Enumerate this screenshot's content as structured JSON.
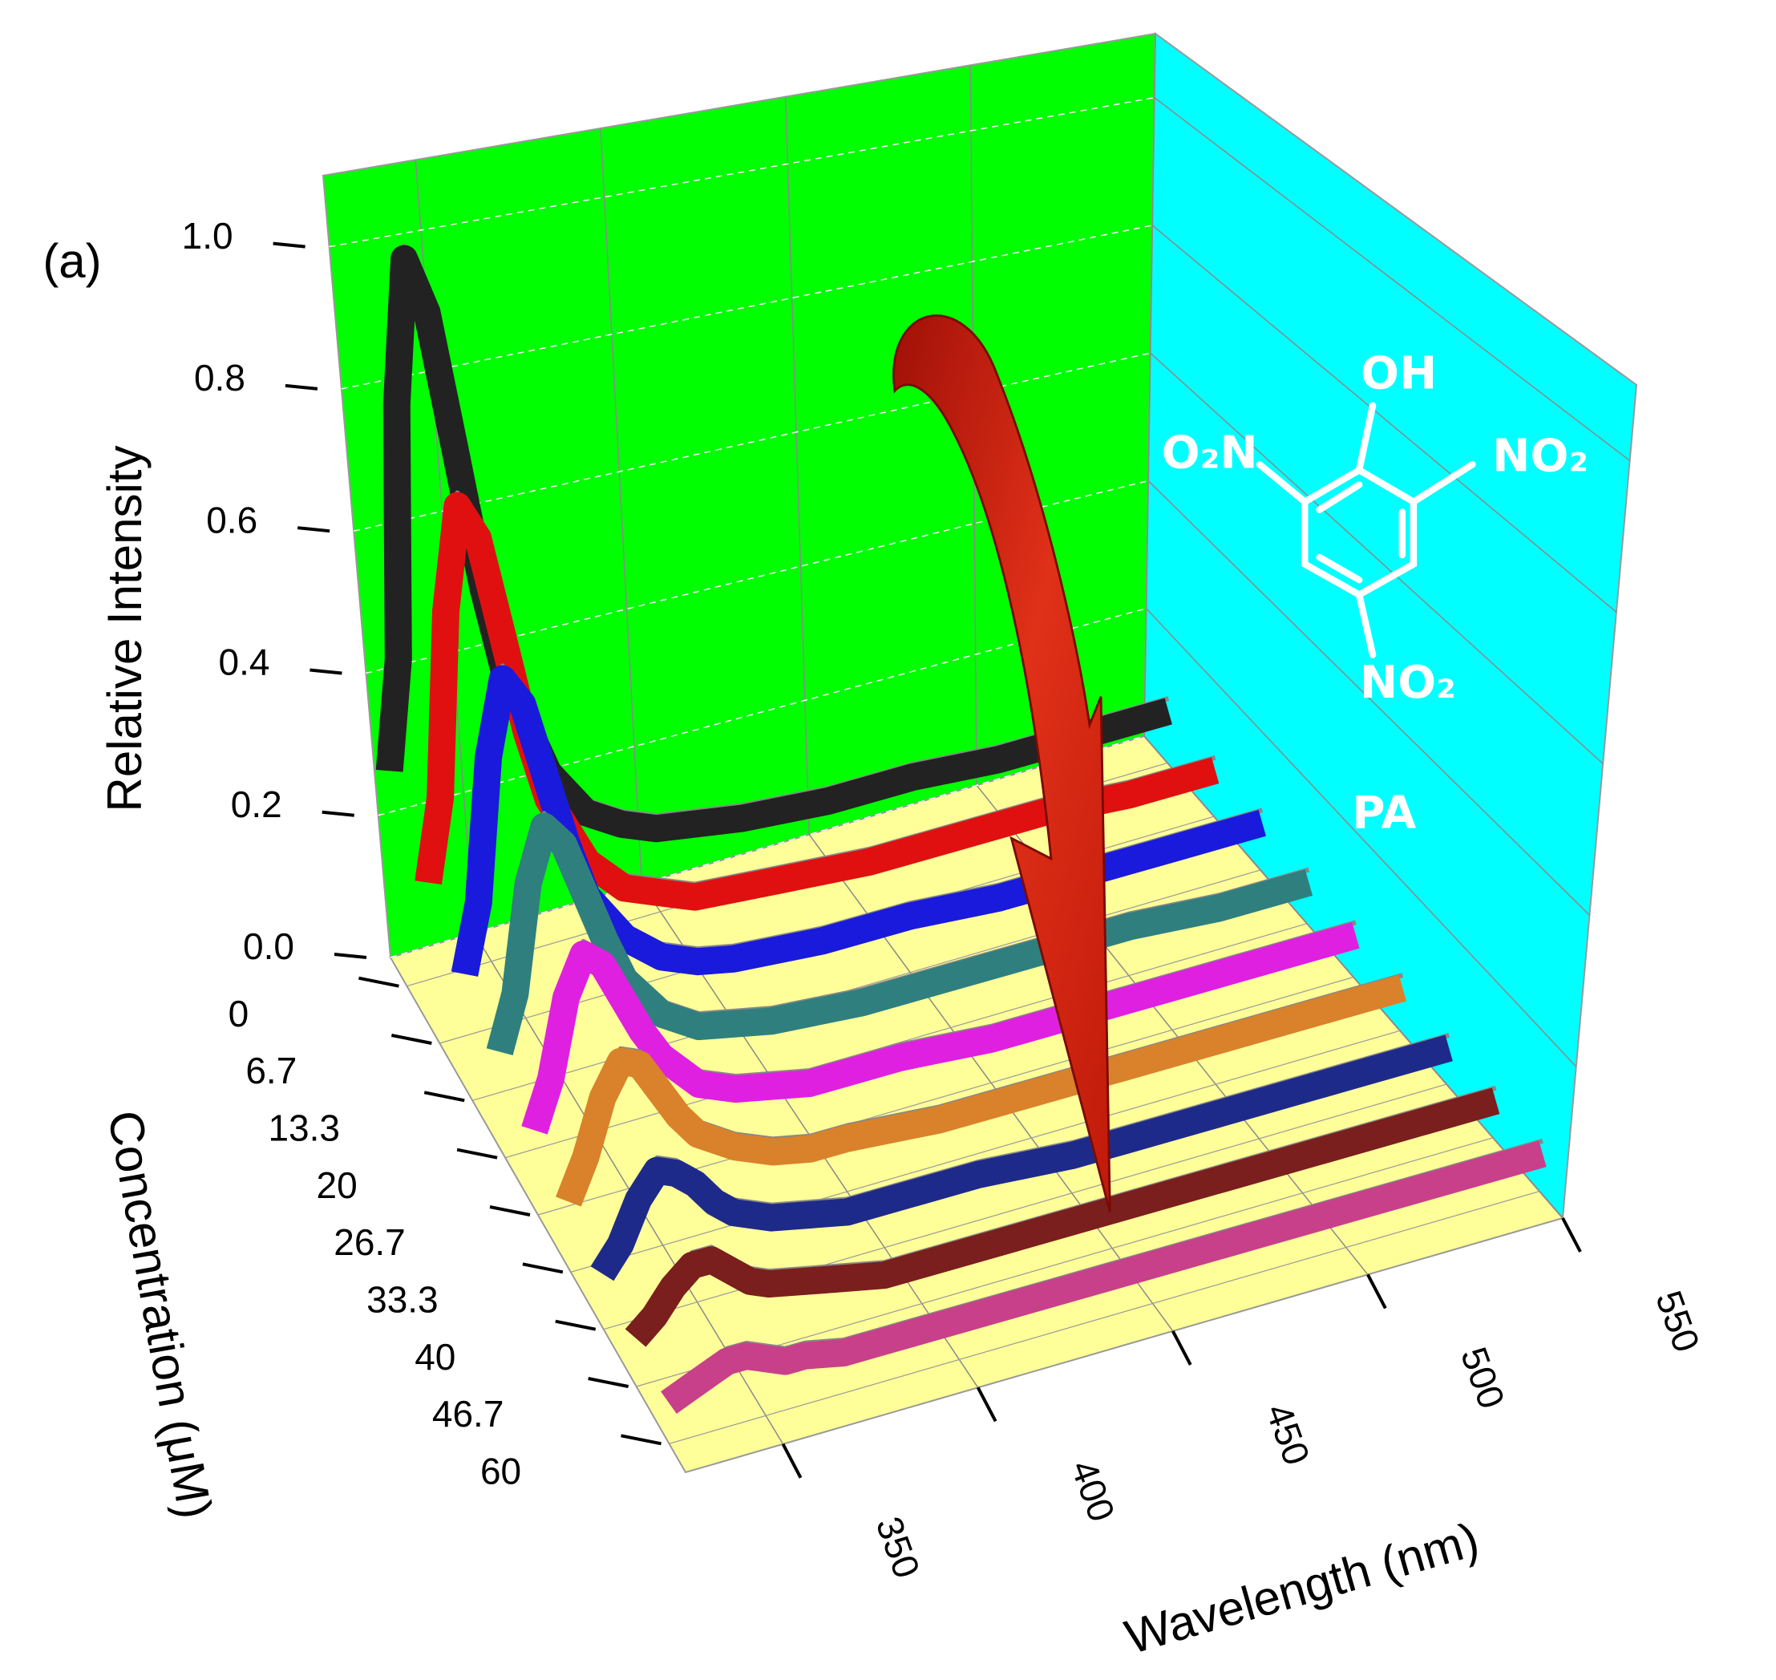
{
  "chart_data": {
    "type": "waterfall3d",
    "panel_label": "(a)",
    "ylabel": "Relative Intensity",
    "xlabel": "Wavelength (nm)",
    "zlabel": "Concentration (μM)",
    "annotations": [
      "OH",
      "O₂N",
      "NO₂",
      "NO₂",
      "PA"
    ],
    "x": [
      325,
      330,
      335,
      340,
      345,
      350,
      355,
      360,
      370,
      380,
      390,
      400,
      425,
      450,
      475,
      500,
      525,
      550
    ],
    "xlim": [
      325,
      550
    ],
    "xticks": [
      350,
      400,
      450,
      500,
      550
    ],
    "ylim": [
      0,
      1.1
    ],
    "yticks": [
      {
        "value": 0,
        "label": "0.0"
      },
      0.2,
      0.4,
      0.6,
      0.8,
      {
        "value": 1,
        "label": "1.0"
      }
    ],
    "categories": [
      "0",
      "6.7",
      "13.3",
      "20",
      "26.7",
      "33.3",
      "40",
      "46.7",
      "60"
    ],
    "grid": true,
    "back_wall_color": "#00ff00",
    "side_wall_color": "#00ffff",
    "floor_color": "#ffff99",
    "series": [
      {
        "color": "#222222",
        "values": [
          0.3,
          0.45,
          0.8,
          1.0,
          0.92,
          0.72,
          0.52,
          0.38,
          0.24,
          0.17,
          0.14,
          0.12,
          0.1,
          0.09,
          0.09,
          0.08,
          0.08,
          0.08
        ]
      },
      {
        "color": "#e01010",
        "values": [
          0.22,
          0.33,
          0.58,
          0.72,
          0.67,
          0.53,
          0.39,
          0.29,
          0.19,
          0.14,
          0.12,
          0.1,
          0.09,
          0.08,
          0.08,
          0.08,
          0.07,
          0.07
        ]
      },
      {
        "color": "#1a1adc",
        "values": [
          0.17,
          0.26,
          0.45,
          0.55,
          0.51,
          0.41,
          0.31,
          0.23,
          0.16,
          0.12,
          0.1,
          0.09,
          0.08,
          0.08,
          0.07,
          0.07,
          0.07,
          0.07
        ]
      },
      {
        "color": "#2f7f7f",
        "values": [
          0.14,
          0.21,
          0.35,
          0.42,
          0.39,
          0.32,
          0.25,
          0.19,
          0.13,
          0.1,
          0.09,
          0.08,
          0.07,
          0.07,
          0.07,
          0.07,
          0.06,
          0.06
        ]
      },
      {
        "color": "#e020e0",
        "values": [
          0.11,
          0.17,
          0.27,
          0.32,
          0.3,
          0.25,
          0.2,
          0.16,
          0.11,
          0.09,
          0.08,
          0.07,
          0.07,
          0.06,
          0.06,
          0.06,
          0.06,
          0.06
        ]
      },
      {
        "color": "#d9822b",
        "values": [
          0.09,
          0.14,
          0.21,
          0.25,
          0.24,
          0.2,
          0.16,
          0.13,
          0.1,
          0.08,
          0.07,
          0.07,
          0.06,
          0.06,
          0.06,
          0.06,
          0.06,
          0.06
        ]
      },
      {
        "color": "#1e2a8a",
        "values": [
          0.07,
          0.1,
          0.15,
          0.18,
          0.17,
          0.15,
          0.12,
          0.1,
          0.08,
          0.07,
          0.06,
          0.06,
          0.06,
          0.05,
          0.05,
          0.05,
          0.05,
          0.05
        ]
      },
      {
        "color": "#7a1e1e",
        "values": [
          0.06,
          0.08,
          0.11,
          0.13,
          0.13,
          0.11,
          0.09,
          0.08,
          0.07,
          0.06,
          0.05,
          0.05,
          0.05,
          0.05,
          0.05,
          0.05,
          0.05,
          0.05
        ]
      },
      {
        "color": "#c8408a",
        "values": [
          0.05,
          0.06,
          0.07,
          0.08,
          0.08,
          0.07,
          0.06,
          0.06,
          0.05,
          0.05,
          0.05,
          0.05,
          0.05,
          0.05,
          0.05,
          0.05,
          0.05,
          0.05
        ]
      }
    ]
  }
}
